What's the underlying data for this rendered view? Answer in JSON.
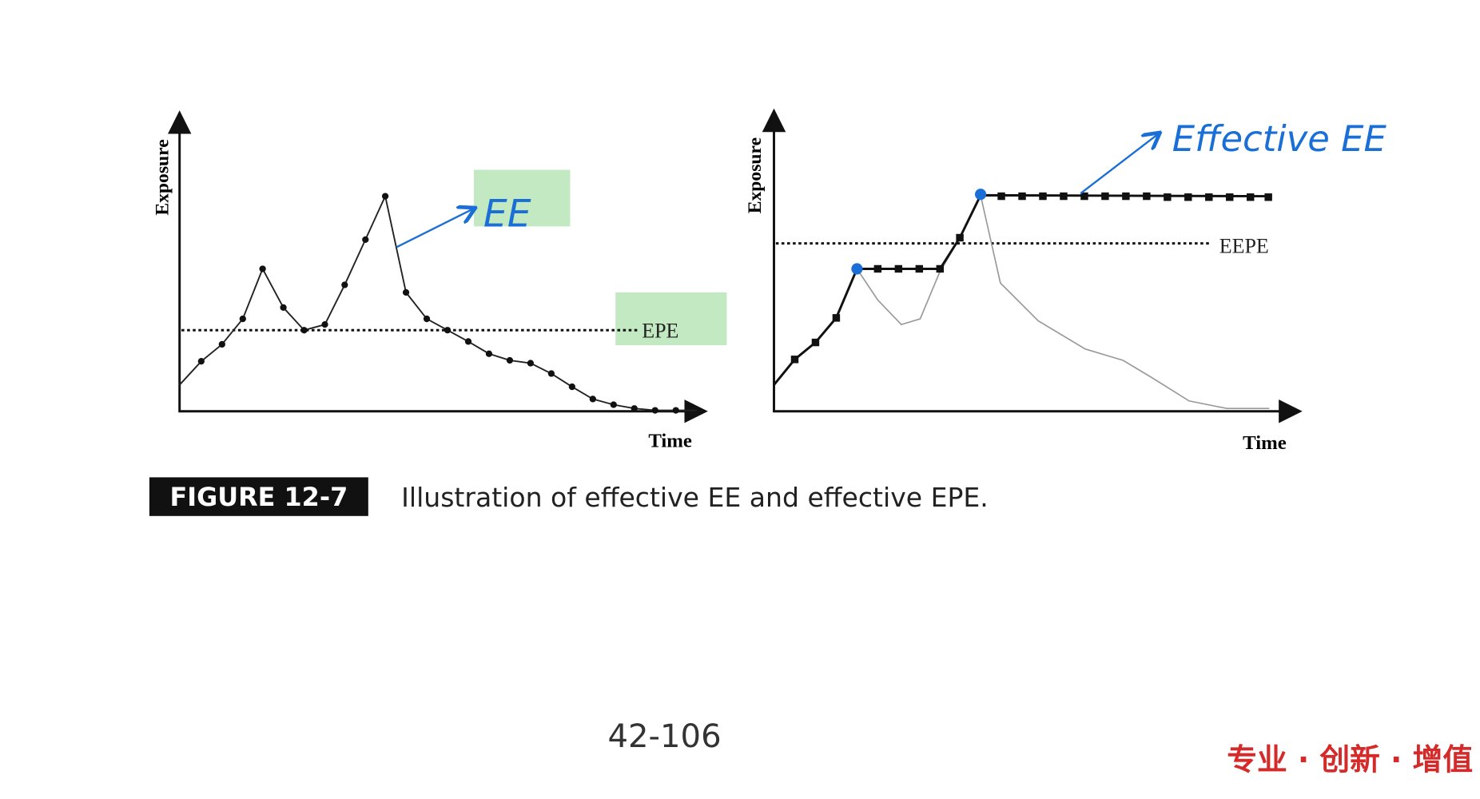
{
  "left_chart": {
    "y_label": "Exposure",
    "x_label": "Time",
    "annotation": "EE",
    "line_label": "EPE"
  },
  "right_chart": {
    "y_label": "Exposure",
    "x_label": "Time",
    "annotation": "Effective EE",
    "line_label": "EEPE"
  },
  "caption": {
    "tag": "FIGURE 12-7",
    "text": "Illustration of effective EE and effective EPE."
  },
  "footer": {
    "page": "42-106",
    "slogan": "专业 · 创新 · 增值"
  }
}
